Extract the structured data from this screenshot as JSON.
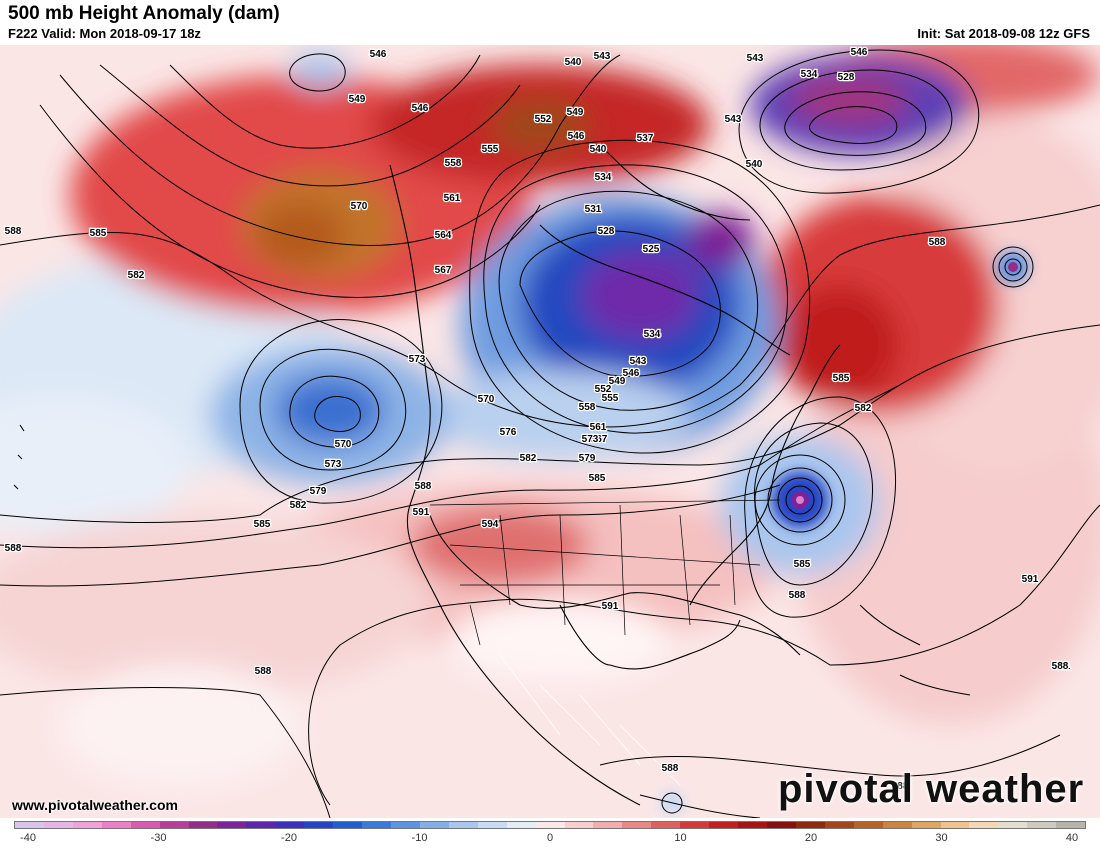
{
  "header": {
    "title": "500 mb Height Anomaly (dam)",
    "valid": "F222 Valid: Mon 2018-09-17 18z",
    "init": "Init: Sat 2018-09-08 12z GFS"
  },
  "footer": {
    "website": "www.pivotalweather.com",
    "brand": "pivotal weather"
  },
  "colorbar": {
    "tick_labels": [
      "-40",
      "-30",
      "-20",
      "-10",
      "0",
      "10",
      "20",
      "30",
      "40"
    ],
    "range": [
      -40,
      40
    ],
    "colors": [
      "#d7c5ea",
      "#e4b6e6",
      "#efa1d8",
      "#ee7fc6",
      "#d95aaf",
      "#b83e9a",
      "#952c89",
      "#7b239a",
      "#5c25ad",
      "#3b2fbd",
      "#2546c4",
      "#1f5fcf",
      "#3b7ad9",
      "#5d93e0",
      "#84aee6",
      "#a9c6ee",
      "#c9dbf3",
      "#e4ecf8",
      "#fbe8e8",
      "#f8cfcf",
      "#f2adad",
      "#ea8686",
      "#e06060",
      "#d43a3a",
      "#c41e1e",
      "#a81313",
      "#8a0f0f",
      "#8f2a0c",
      "#a4461a",
      "#b96228",
      "#cc8440",
      "#dfa663",
      "#eec38c",
      "#f3d9b3",
      "#e4ddd0",
      "#cfc9c0",
      "#b9b3ac"
    ]
  },
  "map": {
    "contour_labels": [
      "546",
      "543",
      "540",
      "549",
      "546",
      "552",
      "549",
      "546",
      "555",
      "558",
      "561",
      "564",
      "567",
      "570",
      "573",
      "537",
      "540",
      "534",
      "531",
      "528",
      "525",
      "534",
      "543",
      "546",
      "549",
      "552",
      "555",
      "558",
      "561",
      "567",
      "573",
      "570",
      "576",
      "582",
      "579",
      "585",
      "588",
      "591",
      "594",
      "591",
      "585",
      "588",
      "582",
      "591",
      "585",
      "582",
      "570",
      "573",
      "579",
      "582",
      "585",
      "588",
      "588",
      "588",
      "588",
      "588",
      "585",
      "591",
      "588",
      "588",
      "534",
      "528",
      "543",
      "540",
      "546",
      "543"
    ]
  }
}
